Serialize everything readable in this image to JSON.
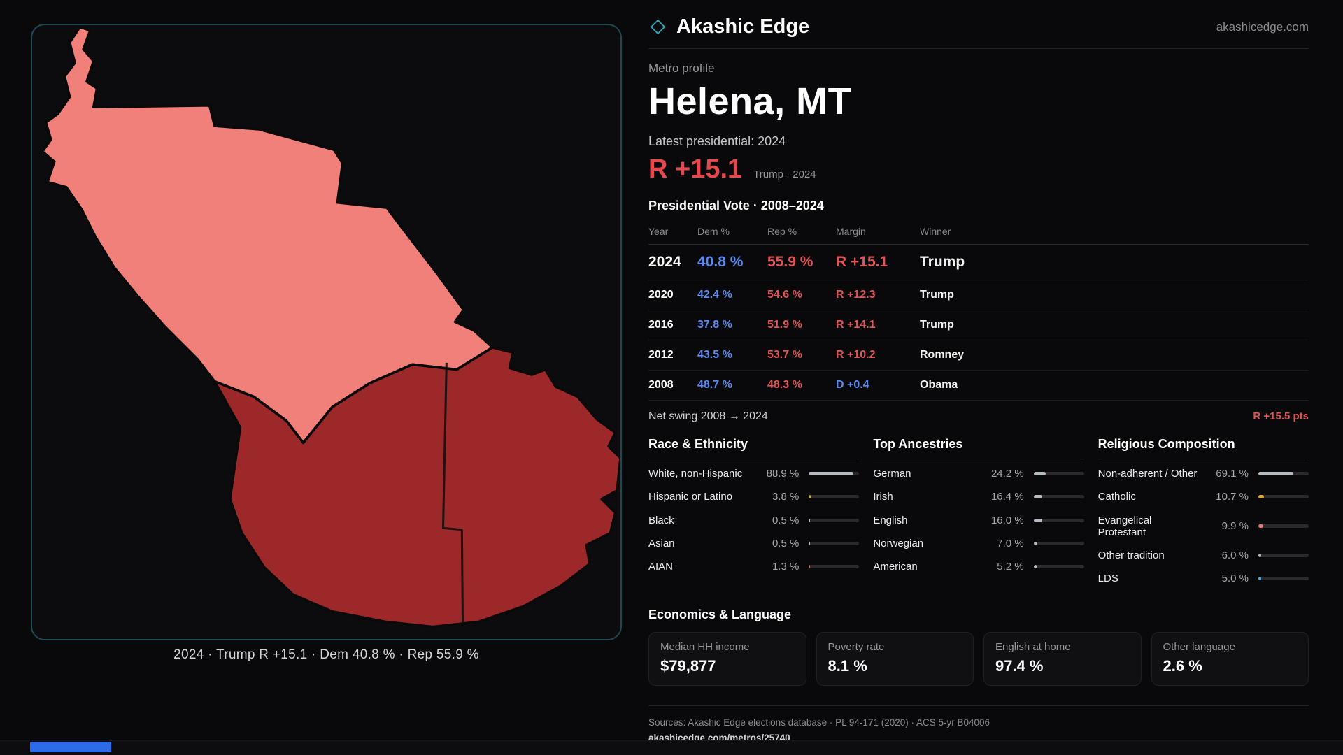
{
  "brand": {
    "name": "Akashic Edge",
    "domain": "akashicedge.com",
    "accent": "#2aa5b5"
  },
  "map": {
    "caption": "2024 · Trump R +15.1 · Dem 40.8 % · Rep 55.9 %",
    "colors": {
      "county_light": "#f1807b",
      "county_dark": "#9c2829",
      "boundary": "#0a0a0b"
    }
  },
  "profile": {
    "kicker": "Metro profile",
    "title": "Helena, MT",
    "latest_label": "Latest presidential: 2024",
    "headline_margin": "R +15.1",
    "headline_note": "Trump · 2024"
  },
  "vote_table": {
    "title": "Presidential Vote · 2008–2024",
    "columns": [
      "Year",
      "Dem %",
      "Rep %",
      "Margin",
      "Winner"
    ],
    "rows": [
      {
        "year": "2024",
        "dem": "40.8 %",
        "rep": "55.9 %",
        "margin": "R +15.1",
        "margin_party": "R",
        "winner": "Trump",
        "emphasis": true
      },
      {
        "year": "2020",
        "dem": "42.4 %",
        "rep": "54.6 %",
        "margin": "R +12.3",
        "margin_party": "R",
        "winner": "Trump",
        "emphasis": false
      },
      {
        "year": "2016",
        "dem": "37.8 %",
        "rep": "51.9 %",
        "margin": "R +14.1",
        "margin_party": "R",
        "winner": "Trump",
        "emphasis": false
      },
      {
        "year": "2012",
        "dem": "43.5 %",
        "rep": "53.7 %",
        "margin": "R +10.2",
        "margin_party": "R",
        "winner": "Romney",
        "emphasis": false
      },
      {
        "year": "2008",
        "dem": "48.7 %",
        "rep": "48.3 %",
        "margin": "D +0.4",
        "margin_party": "D",
        "winner": "Obama",
        "emphasis": false
      }
    ],
    "net_swing_label": "Net swing 2008 → 2024",
    "net_swing_value": "R +15.5 pts"
  },
  "demographics": [
    {
      "title": "Race & Ethnicity",
      "rows": [
        {
          "label": "White, non-Hispanic",
          "value": "88.9 %",
          "pct": 88.9,
          "color": "#b6bac2"
        },
        {
          "label": "Hispanic or Latino",
          "value": "3.8 %",
          "pct": 3.8,
          "color": "#d8a72e"
        },
        {
          "label": "Black",
          "value": "0.5 %",
          "pct": 0.5,
          "color": "#b6bac2"
        },
        {
          "label": "Asian",
          "value": "0.5 %",
          "pct": 0.5,
          "color": "#b6bac2"
        },
        {
          "label": "AIAN",
          "value": "1.3 %",
          "pct": 1.3,
          "color": "#dd6f3c"
        }
      ]
    },
    {
      "title": "Top Ancestries",
      "rows": [
        {
          "label": "German",
          "value": "24.2 %",
          "pct": 24.2,
          "color": "#b6bac2"
        },
        {
          "label": "Irish",
          "value": "16.4 %",
          "pct": 16.4,
          "color": "#b6bac2"
        },
        {
          "label": "English",
          "value": "16.0 %",
          "pct": 16.0,
          "color": "#b6bac2"
        },
        {
          "label": "Norwegian",
          "value": "7.0 %",
          "pct": 7.0,
          "color": "#b6bac2"
        },
        {
          "label": "American",
          "value": "5.2 %",
          "pct": 5.2,
          "color": "#b6bac2"
        }
      ]
    },
    {
      "title": "Religious Composition",
      "rows": [
        {
          "label": "Non-adherent / Other",
          "value": "69.1 %",
          "pct": 69.1,
          "color": "#b6bac2"
        },
        {
          "label": "Catholic",
          "value": "10.7 %",
          "pct": 10.7,
          "color": "#d8a72e"
        },
        {
          "label": "Evangelical Protestant",
          "value": "9.9 %",
          "pct": 9.9,
          "color": "#e57a72"
        },
        {
          "label": "Other tradition",
          "value": "6.0 %",
          "pct": 6.0,
          "color": "#b6bac2"
        },
        {
          "label": "LDS",
          "value": "5.0 %",
          "pct": 5.0,
          "color": "#4fb3d9"
        }
      ]
    }
  ],
  "economics": {
    "title": "Economics & Language",
    "stats": [
      {
        "label": "Median HH income",
        "value": "$79,877"
      },
      {
        "label": "Poverty rate",
        "value": "8.1 %"
      },
      {
        "label": "English at home",
        "value": "97.4 %"
      },
      {
        "label": "Other language",
        "value": "2.6 %"
      }
    ]
  },
  "footer": {
    "sources": "Sources: Akashic Edge elections database · PL 94-171 (2020) · ACS 5-yr B04006",
    "permalink": "akashicedge.com/metros/25740"
  },
  "chart_data": {
    "type": "table",
    "title": "Presidential Vote · 2008–2024",
    "columns": [
      "Year",
      "Dem %",
      "Rep %",
      "Margin",
      "Winner"
    ],
    "rows": [
      [
        2024,
        40.8,
        55.9,
        "R +15.1",
        "Trump"
      ],
      [
        2020,
        42.4,
        54.6,
        "R +12.3",
        "Trump"
      ],
      [
        2016,
        37.8,
        51.9,
        "R +14.1",
        "Trump"
      ],
      [
        2012,
        43.5,
        53.7,
        "R +10.2",
        "Romney"
      ],
      [
        2008,
        48.7,
        48.3,
        "D +0.4",
        "Obama"
      ]
    ],
    "net_swing": "R +15.5 pts"
  }
}
